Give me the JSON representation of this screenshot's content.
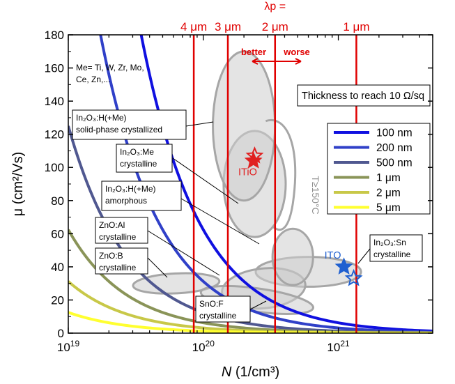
{
  "chart_data": {
    "type": "line",
    "x_scale": "log",
    "xlim": [
      1e+19,
      5e+21
    ],
    "ylim": [
      0,
      180
    ],
    "xlabel_italic": "N",
    "xlabel_rest": " (1/cm³)",
    "ylabel": "μ (cm²/Vs)",
    "x_ticks": [
      {
        "value": 1e+19,
        "base": "10",
        "exp": "19"
      },
      {
        "value": 1e+20,
        "base": "10",
        "exp": "20"
      },
      {
        "value": 1e+21,
        "base": "10",
        "exp": "21"
      }
    ],
    "y_ticks": [
      0,
      20,
      40,
      60,
      80,
      100,
      120,
      140,
      160,
      180
    ],
    "grid": false,
    "legend_title": "Thickness to reach 10 Ω/sq",
    "legend_placement": "right",
    "series": [
      {
        "name": "100 nm",
        "color": "#1010e0",
        "k": 6.24e+21
      },
      {
        "name": "200 nm",
        "color": "#3040c8",
        "k": 3.12e+21
      },
      {
        "name": "500 nm",
        "color": "#505890",
        "k": 1.25e+21
      },
      {
        "name": "1 μm",
        "color": "#8a9458",
        "k": 6.24e+20
      },
      {
        "name": "2 μm",
        "color": "#c8c848",
        "k": 3.12e+20
      },
      {
        "name": "5 μm",
        "color": "#ffff30",
        "k": 1.25e+20
      }
    ],
    "plasma_lines": {
      "color": "#e00000",
      "header": "λp =",
      "lines": [
        {
          "label": "4 μm",
          "x": 8.5e+19
        },
        {
          "label": "3 μm",
          "x": 1.52e+20
        },
        {
          "label": "2 μm",
          "x": 3.4e+20
        },
        {
          "label": "1 μm",
          "x": 1.36e+21
        }
      ],
      "better_label": "better",
      "worse_label": "worse"
    },
    "regions": [
      {
        "id": "ito-sn",
        "cx": 6e+20,
        "cy": 37,
        "rx_dec": 0.39,
        "ry": 9,
        "rot": 0
      },
      {
        "id": "zno-al",
        "cx": 2.8e+20,
        "cy": 27,
        "rx_dec": 0.31,
        "ry": 12,
        "rot": -6
      },
      {
        "id": "zno-b",
        "cx": 6.3e+19,
        "cy": 30,
        "rx_dec": 0.32,
        "ry": 6,
        "rot": -3
      },
      {
        "id": "sno-f",
        "cx": 2.5e+20,
        "cy": 20,
        "rx_dec": 0.42,
        "ry": 7,
        "rot": 8
      },
      {
        "id": "amorphous",
        "cx": 4.6e+20,
        "cy": 46,
        "rx_dec": 0.15,
        "ry": 17,
        "rot": 0
      },
      {
        "id": "crystalline-me",
        "cx": 2.4e+20,
        "cy": 90,
        "rx_dec": 0.23,
        "ry": 32,
        "rot": 0
      },
      {
        "id": "spc",
        "cx": 2e+20,
        "cy": 125,
        "rx_dec": 0.23,
        "ry": 45,
        "rot": 0
      }
    ],
    "t150_label": "T≥150°C",
    "markers": [
      {
        "label": "ITiO",
        "x": 2.4e+20,
        "y": 107,
        "color": "#e02020",
        "filled": false
      },
      {
        "label": "",
        "x": 2.35e+20,
        "y": 104,
        "color": "#e02020",
        "filled": true
      },
      {
        "label": "ITO",
        "x": 1.1e+21,
        "y": 40,
        "color": "#2060d0",
        "filled": true
      },
      {
        "label": "",
        "x": 1.3e+21,
        "y": 33,
        "color": "#2060d0",
        "filled": false
      }
    ],
    "annotations": [
      {
        "id": "me-note",
        "lines": [
          "Me= Ti, W, Zr, Mo,",
          "Ce, Zn,..."
        ]
      },
      {
        "id": "spc-box",
        "lines": [
          "In₂O₃:H(+Me)",
          "solid-phase crystallized"
        ]
      },
      {
        "id": "me-box",
        "lines": [
          "In₂O₃:Me",
          "crystalline"
        ]
      },
      {
        "id": "amorph-box",
        "lines": [
          "In₂O₃:H(+Me)",
          "amorphous"
        ]
      },
      {
        "id": "al-box",
        "lines": [
          "ZnO:Al",
          "crystalline"
        ]
      },
      {
        "id": "b-box",
        "lines": [
          "ZnO:B",
          "crystalline"
        ]
      },
      {
        "id": "f-box",
        "lines": [
          "SnO:F",
          "crystalline"
        ]
      },
      {
        "id": "sn-box",
        "lines": [
          "In₂O₃:Sn",
          "crystalline"
        ]
      }
    ]
  }
}
